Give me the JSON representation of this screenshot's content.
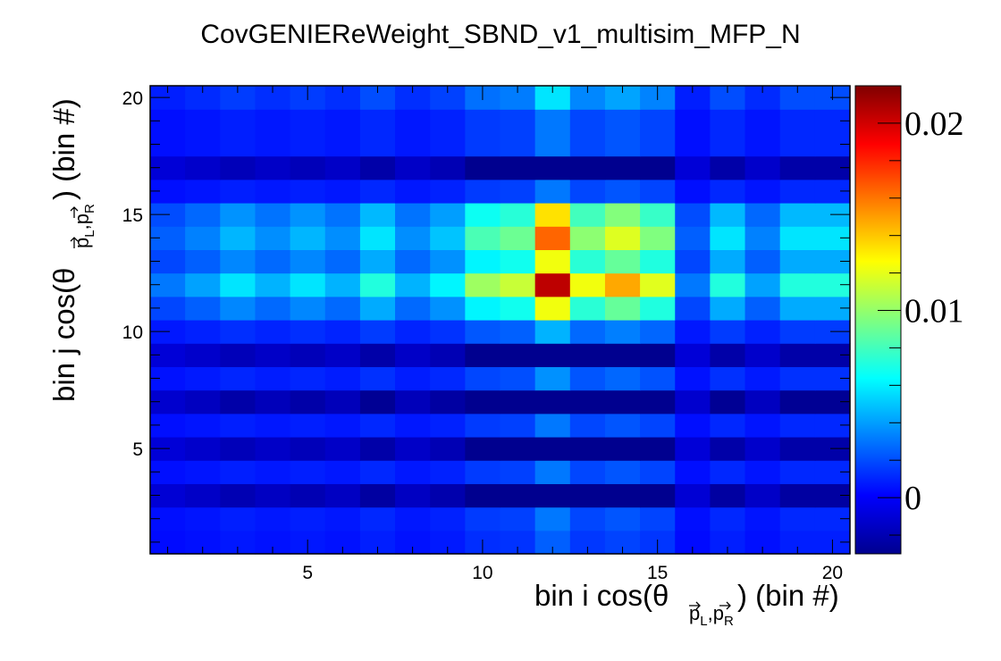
{
  "chart_data": {
    "type": "heatmap",
    "title": "CovGENIEReWeight_SBND_v1_multisim_MFP_N",
    "xlabel": {
      "main": "bin i cos(θ",
      "sub": "p",
      "sub_parts": [
        "L",
        ",",
        "p",
        "R"
      ],
      "tail": ") (bin #)"
    },
    "ylabel": {
      "main": "bin j cos(θ",
      "sub": "p",
      "sub_parts": [
        "L",
        ",",
        "p",
        "R"
      ],
      "tail": ") (bin #)"
    },
    "x_range": [
      0.5,
      20.5
    ],
    "y_range": [
      0.5,
      20.5
    ],
    "x_ticks": [
      5,
      10,
      15,
      20
    ],
    "y_ticks": [
      5,
      10,
      15,
      20
    ],
    "x_tick_labels": [
      "5",
      "10",
      "15",
      "20"
    ],
    "y_tick_labels": [
      "5",
      "10",
      "15",
      "20"
    ],
    "zlim": [
      -0.003,
      0.022
    ],
    "z_ticks": [
      0,
      0.01,
      0.02
    ],
    "z_tick_labels": [
      "0",
      "0.01",
      "0.02"
    ],
    "colormap": "jet",
    "colormap_stops": [
      "#00008f",
      "#0000ff",
      "#00ffff",
      "#ffff00",
      "#ff0000",
      "#800000"
    ],
    "col_weights": [
      0.15,
      0.2,
      0.28,
      0.22,
      0.28,
      0.22,
      0.35,
      0.22,
      0.3,
      0.5,
      0.55,
      1.0,
      0.6,
      0.72,
      0.58,
      0.15,
      0.35,
      0.2,
      0.35,
      0.35
    ],
    "row_weights": [
      0.12,
      0.15,
      0.35,
      0.15,
      0.32,
      0.15,
      0.4,
      0.18,
      0.32,
      0.22,
      0.6,
      1.0,
      0.6,
      0.8,
      0.65,
      0.15,
      0.32,
      0.15,
      0.15,
      0.28
    ],
    "row_signs": [
      1,
      1,
      -1,
      1,
      -1,
      1,
      -1,
      1,
      -1,
      1,
      1,
      1,
      1,
      1,
      1,
      1,
      -1,
      1,
      1,
      1
    ],
    "peak": 0.0205
  }
}
